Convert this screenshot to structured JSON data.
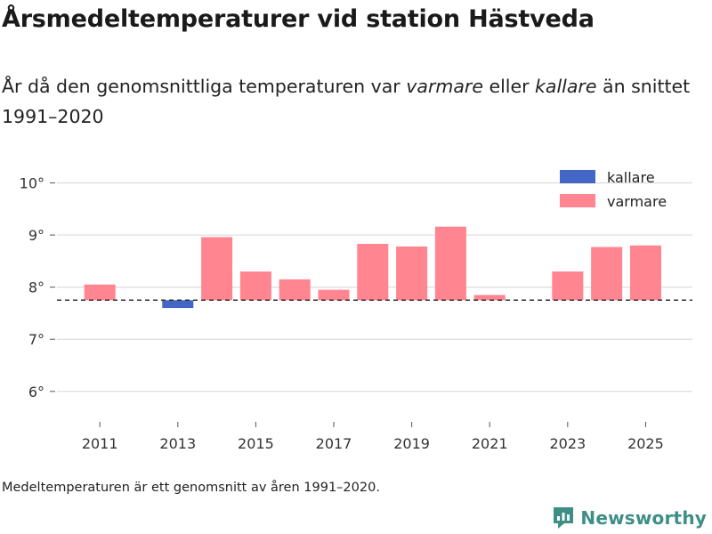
{
  "title": "Årsmedeltemperaturer vid station Hästveda",
  "subtitle": {
    "part1": "År då den genomsnittliga temperaturen var ",
    "warmer": "varmare",
    "part2": " eller ",
    "colder": "kallare",
    "part3": " än snittet 1991–2020"
  },
  "footnote": "Medeltemperaturen är ett genomsnitt av åren 1991–2020.",
  "brand": "Newsworthy",
  "colors": {
    "warmer": "#ff8591",
    "colder": "#4466c4",
    "grid": "#dcdcdc",
    "baseline": "#333333",
    "brand": "#3d8f86"
  },
  "chart_data": {
    "type": "bar",
    "title": "Årsmedeltemperaturer vid station Hästveda",
    "xlabel": "",
    "ylabel": "",
    "baseline": 7.75,
    "ylim": [
      5.45,
      10.35
    ],
    "yticks": [
      6,
      7,
      8,
      9,
      10
    ],
    "ytick_labels": [
      "6°",
      "7°",
      "8°",
      "9°",
      "10°"
    ],
    "xlim": [
      2009.9,
      2026.2
    ],
    "xticks": [
      2011,
      2013,
      2015,
      2017,
      2019,
      2021,
      2023,
      2025
    ],
    "xtick_labels": [
      "2011",
      "2013",
      "2015",
      "2017",
      "2019",
      "2021",
      "2023",
      "2025"
    ],
    "legend": {
      "position": "top-right",
      "items": [
        {
          "label": "kallare",
          "series": "colder"
        },
        {
          "label": "varmare",
          "series": "warmer"
        }
      ]
    },
    "bars": [
      {
        "year": 2011,
        "value": 8.05,
        "series": "warmer"
      },
      {
        "year": 2013,
        "value": 7.6,
        "series": "colder"
      },
      {
        "year": 2014,
        "value": 8.96,
        "series": "warmer"
      },
      {
        "year": 2015,
        "value": 8.3,
        "series": "warmer"
      },
      {
        "year": 2016,
        "value": 8.15,
        "series": "warmer"
      },
      {
        "year": 2017,
        "value": 7.95,
        "series": "warmer"
      },
      {
        "year": 2018,
        "value": 8.83,
        "series": "warmer"
      },
      {
        "year": 2019,
        "value": 8.78,
        "series": "warmer"
      },
      {
        "year": 2020,
        "value": 9.16,
        "series": "warmer"
      },
      {
        "year": 2021,
        "value": 7.85,
        "series": "warmer"
      },
      {
        "year": 2023,
        "value": 8.3,
        "series": "warmer"
      },
      {
        "year": 2024,
        "value": 8.77,
        "series": "warmer"
      },
      {
        "year": 2025,
        "value": 8.8,
        "series": "warmer"
      }
    ]
  }
}
